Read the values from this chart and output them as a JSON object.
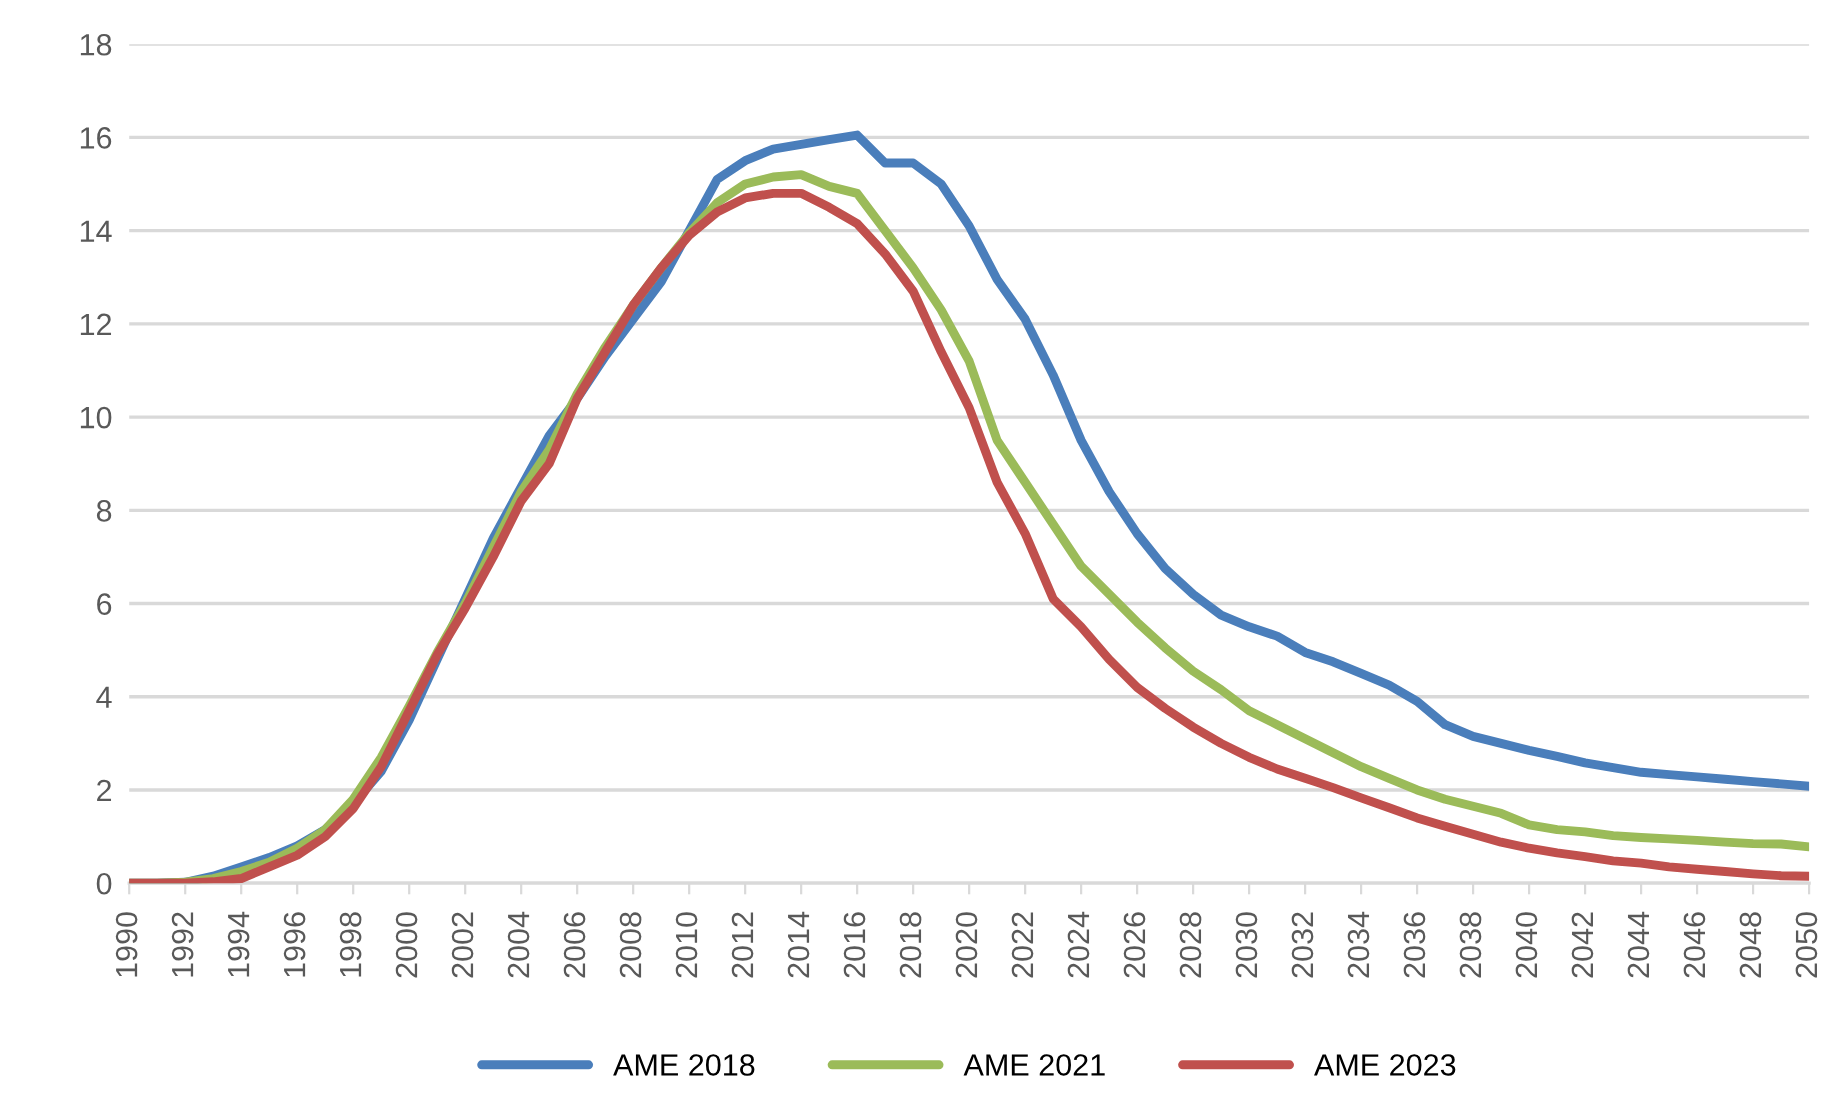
{
  "chart_data": {
    "type": "line",
    "x": [
      1990,
      1991,
      1992,
      1993,
      1994,
      1995,
      1996,
      1997,
      1998,
      1999,
      2000,
      2001,
      2002,
      2003,
      2004,
      2005,
      2006,
      2007,
      2008,
      2009,
      2010,
      2011,
      2012,
      2013,
      2014,
      2015,
      2016,
      2017,
      2018,
      2019,
      2020,
      2021,
      2022,
      2023,
      2024,
      2025,
      2026,
      2027,
      2028,
      2029,
      2030,
      2031,
      2032,
      2033,
      2034,
      2035,
      2036,
      2037,
      2038,
      2039,
      2040,
      2041,
      2042,
      2043,
      2044,
      2045,
      2046,
      2047,
      2048,
      2049,
      2050
    ],
    "series": [
      {
        "name": "AME 2018",
        "color": "#4a7ebb",
        "values": [
          0,
          0,
          0.02,
          0.15,
          0.35,
          0.55,
          0.8,
          1.15,
          1.7,
          2.4,
          3.5,
          4.8,
          6.1,
          7.4,
          8.5,
          9.6,
          10.4,
          11.3,
          12.1,
          12.9,
          14.0,
          15.1,
          15.5,
          15.75,
          15.85,
          15.95,
          16.05,
          15.45,
          15.45,
          15.0,
          14.1,
          12.95,
          12.1,
          10.9,
          9.5,
          8.4,
          7.5,
          6.75,
          6.2,
          5.75,
          5.5,
          5.3,
          4.95,
          4.75,
          4.5,
          4.25,
          3.9,
          3.4,
          3.15,
          3.0,
          2.85,
          2.72,
          2.58,
          2.48,
          2.38,
          2.33,
          2.28,
          2.23,
          2.18,
          2.13,
          2.08
        ]
      },
      {
        "name": "AME 2021",
        "color": "#9bbb59",
        "values": [
          0,
          0,
          0.02,
          0.1,
          0.25,
          0.45,
          0.75,
          1.15,
          1.8,
          2.7,
          3.8,
          4.95,
          6.0,
          7.2,
          8.4,
          9.3,
          10.5,
          11.5,
          12.4,
          13.2,
          13.95,
          14.6,
          15.0,
          15.15,
          15.2,
          14.95,
          14.8,
          14.0,
          13.2,
          12.3,
          11.2,
          9.5,
          8.6,
          7.7,
          6.8,
          6.2,
          5.6,
          5.05,
          4.55,
          4.15,
          3.7,
          3.4,
          3.1,
          2.8,
          2.5,
          2.25,
          2.0,
          1.8,
          1.65,
          1.5,
          1.25,
          1.15,
          1.1,
          1.02,
          0.98,
          0.95,
          0.92,
          0.88,
          0.85,
          0.84,
          0.78
        ]
      },
      {
        "name": "AME 2023",
        "color": "#c0504d",
        "values": [
          0,
          0,
          0,
          0.03,
          0.1,
          0.35,
          0.6,
          1.0,
          1.6,
          2.5,
          3.7,
          4.9,
          5.9,
          7.0,
          8.2,
          9.0,
          10.4,
          11.4,
          12.4,
          13.2,
          13.9,
          14.4,
          14.7,
          14.8,
          14.8,
          14.5,
          14.15,
          13.5,
          12.7,
          11.4,
          10.2,
          8.6,
          7.5,
          6.1,
          5.5,
          4.8,
          4.2,
          3.75,
          3.35,
          3.0,
          2.7,
          2.45,
          2.25,
          2.05,
          1.83,
          1.62,
          1.4,
          1.22,
          1.05,
          0.88,
          0.75,
          0.65,
          0.57,
          0.48,
          0.43,
          0.35,
          0.3,
          0.25,
          0.2,
          0.16,
          0.15
        ]
      }
    ],
    "xlim": [
      1990,
      2050
    ],
    "xticks": [
      1990,
      1992,
      1994,
      1996,
      1998,
      2000,
      2002,
      2004,
      2006,
      2008,
      2010,
      2012,
      2014,
      2016,
      2018,
      2020,
      2022,
      2024,
      2026,
      2028,
      2030,
      2032,
      2034,
      2036,
      2038,
      2040,
      2042,
      2044,
      2046,
      2048,
      2050
    ],
    "ylim": [
      0,
      18
    ],
    "yticks": [
      0,
      2,
      4,
      6,
      8,
      10,
      12,
      14,
      16,
      18
    ],
    "grid": "y",
    "legend": "bottom",
    "marker": "none",
    "line_style": "solid"
  }
}
